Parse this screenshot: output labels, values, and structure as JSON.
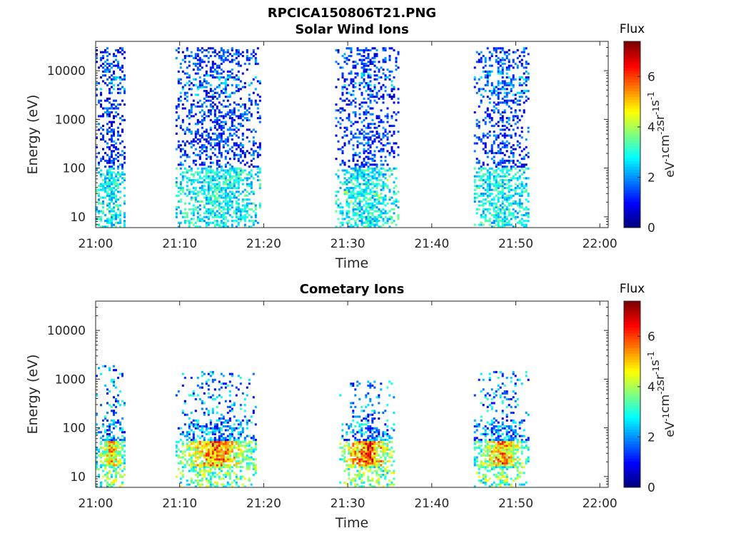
{
  "figure_title": "RPCICA150806T21.PNG",
  "colors": {
    "colormap": "jet",
    "axis": "#262626",
    "background": "#ffffff"
  },
  "chart_data": [
    {
      "type": "heatmap",
      "title": "Solar Wind Ions",
      "xlabel": "Time",
      "ylabel": "Energy (eV)",
      "x_ticks": [
        "21:00",
        "21:10",
        "21:20",
        "21:30",
        "21:40",
        "21:50",
        "22:00"
      ],
      "x_range": [
        "21:00",
        "22:01"
      ],
      "y_scale": "log",
      "y_ticks": [
        10,
        100,
        1000,
        10000
      ],
      "ylim": [
        6,
        40000
      ],
      "colorbar": {
        "label": "Flux",
        "unit": "eV-1cm-2sr-1s-1",
        "ticks": [
          0,
          2,
          4,
          6
        ],
        "range": [
          0,
          7.4
        ]
      },
      "grid": false,
      "activity_intervals": [
        {
          "start": "21:00",
          "end": "21:03.5",
          "emax": 30000,
          "flux_peak": 3.0
        },
        {
          "start": "21:09.5",
          "end": "21:19.5",
          "emax": 30000,
          "flux_peak": 3.3
        },
        {
          "start": "21:28.5",
          "end": "21:36",
          "emax": 30000,
          "flux_peak": 4.8
        },
        {
          "start": "21:45",
          "end": "21:51.5",
          "emax": 30000,
          "flux_peak": 3.3
        }
      ]
    },
    {
      "type": "heatmap",
      "title": "Cometary Ions",
      "xlabel": "Time",
      "ylabel": "Energy (eV)",
      "x_ticks": [
        "21:00",
        "21:10",
        "21:20",
        "21:30",
        "21:40",
        "21:50",
        "22:00"
      ],
      "x_range": [
        "21:00",
        "22:01"
      ],
      "y_scale": "log",
      "y_ticks": [
        10,
        100,
        1000,
        10000
      ],
      "ylim": [
        6,
        40000
      ],
      "colorbar": {
        "label": "Flux",
        "unit": "eV-1cm-2sr-1s-1",
        "ticks": [
          0,
          2,
          4,
          6
        ],
        "range": [
          0,
          7.4
        ]
      },
      "grid": false,
      "activity_intervals": [
        {
          "start": "21:00",
          "end": "21:03.5",
          "emax": 2000,
          "peak_energy": 30,
          "flux_peak": 5.8
        },
        {
          "start": "21:09.5",
          "end": "21:19",
          "emax": 1500,
          "peak_energy": 30,
          "flux_peak": 6.5
        },
        {
          "start": "21:29",
          "end": "21:35.5",
          "emax": 900,
          "peak_energy": 30,
          "flux_peak": 7.0
        },
        {
          "start": "21:45",
          "end": "21:51.5",
          "emax": 1500,
          "peak_energy": 30,
          "flux_peak": 6.2
        }
      ]
    }
  ]
}
